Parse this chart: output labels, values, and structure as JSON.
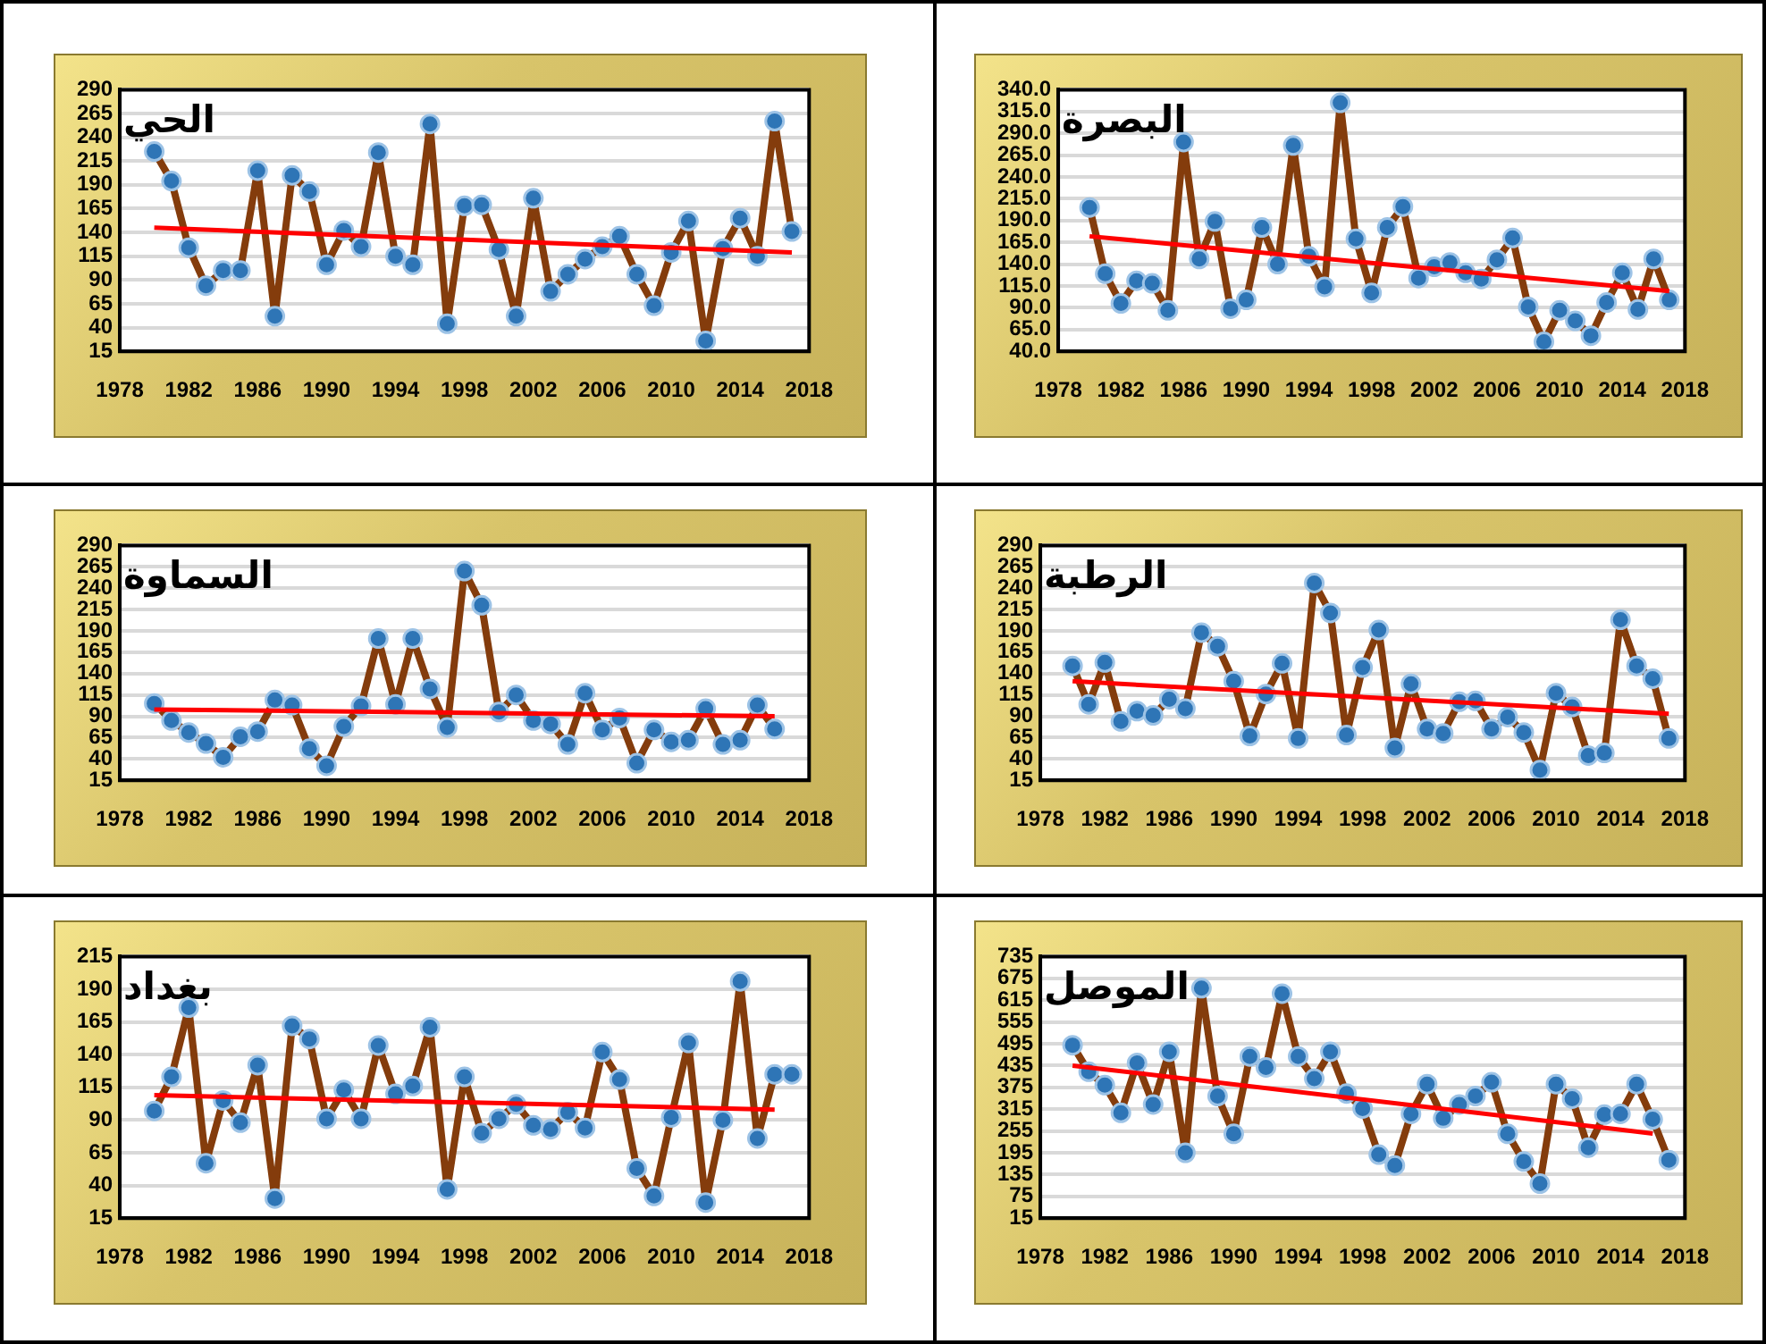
{
  "chart_data": [
    {
      "type": "line",
      "title": "الحي",
      "xlim": [
        1978,
        2018
      ],
      "xticks": [
        1978,
        1982,
        1986,
        1990,
        1994,
        1998,
        2002,
        2006,
        2010,
        2014,
        2018
      ],
      "ylim": [
        15,
        290
      ],
      "yticks": [
        15,
        40,
        65,
        90,
        115,
        140,
        165,
        190,
        215,
        240,
        265,
        290
      ],
      "grid": "y",
      "legend": false,
      "series": [
        {
          "color": "#843c0c",
          "marker": "circle",
          "x": [
            1980,
            1981,
            1982,
            1983,
            1984,
            1985,
            1986,
            1987,
            1988,
            1989,
            1990,
            1991,
            1992,
            1993,
            1994,
            1995,
            1996,
            1997,
            1998,
            1999,
            2000,
            2001,
            2002,
            2003,
            2004,
            2005,
            2006,
            2007,
            2008,
            2009,
            2010,
            2011,
            2012,
            2013,
            2014,
            2015,
            2016,
            2017
          ],
          "values": [
            225,
            194,
            124,
            84,
            100,
            100,
            205,
            52,
            200,
            183,
            106,
            142,
            125,
            224,
            115,
            106,
            254,
            44,
            168,
            169,
            122,
            52,
            176,
            78,
            96,
            112,
            125,
            136,
            96,
            63,
            119,
            152,
            26,
            123,
            155,
            115,
            257,
            141
          ]
        },
        {
          "type": "line",
          "color": "#ff0000",
          "marker": "none",
          "x": [
            1980,
            2017
          ],
          "values": [
            145,
            119
          ]
        }
      ]
    },
    {
      "type": "line",
      "title": "البصرة",
      "xlim": [
        1978,
        2018
      ],
      "xticks": [
        1978,
        1982,
        1986,
        1990,
        1994,
        1998,
        2002,
        2006,
        2010,
        2014,
        2018
      ],
      "ylim": [
        40,
        340
      ],
      "yticks": [
        {
          "value": 40,
          "label": "40.0"
        },
        {
          "value": 65,
          "label": "65.0"
        },
        {
          "value": 90,
          "label": "90.0"
        },
        {
          "value": 115,
          "label": "115.0"
        },
        {
          "value": 140,
          "label": "140.0"
        },
        {
          "value": 165,
          "label": "165.0"
        },
        {
          "value": 190,
          "label": "190.0"
        },
        {
          "value": 215,
          "label": "215.0"
        },
        {
          "value": 240,
          "label": "240.0"
        },
        {
          "value": 265,
          "label": "265.0"
        },
        {
          "value": 290,
          "label": "290.0"
        },
        {
          "value": 315,
          "label": "315.0"
        },
        {
          "value": 340,
          "label": "340.0"
        }
      ],
      "grid": "y",
      "legend": false,
      "series": [
        {
          "color": "#843c0c",
          "marker": "circle",
          "x": [
            1980,
            1981,
            1982,
            1983,
            1984,
            1985,
            1986,
            1987,
            1988,
            1989,
            1990,
            1991,
            1992,
            1993,
            1994,
            1995,
            1996,
            1997,
            1998,
            1999,
            2000,
            2001,
            2002,
            2003,
            2004,
            2005,
            2006,
            2007,
            2008,
            2009,
            2010,
            2011,
            2012,
            2013,
            2014,
            2015,
            2016,
            2017
          ],
          "values": [
            205,
            129,
            95,
            121,
            118,
            87,
            280,
            146,
            189,
            89,
            99,
            182,
            140,
            276,
            149,
            114,
            325,
            169,
            107,
            182,
            206,
            124,
            137,
            142,
            130,
            123,
            145,
            170,
            91,
            51,
            87,
            75,
            58,
            96,
            130,
            88,
            146,
            99
          ]
        },
        {
          "type": "line",
          "color": "#ff0000",
          "marker": "none",
          "x": [
            1980,
            2017
          ],
          "values": [
            172,
            109
          ]
        }
      ]
    },
    {
      "type": "line",
      "title": "السماوة",
      "xlim": [
        1978,
        2018
      ],
      "xticks": [
        1978,
        1982,
        1986,
        1990,
        1994,
        1998,
        2002,
        2006,
        2010,
        2014,
        2018
      ],
      "ylim": [
        15,
        290
      ],
      "yticks": [
        15,
        40,
        65,
        90,
        115,
        140,
        165,
        190,
        215,
        240,
        265,
        290
      ],
      "grid": "y",
      "legend": false,
      "series": [
        {
          "color": "#843c0c",
          "marker": "circle",
          "x": [
            1980,
            1981,
            1982,
            1983,
            1984,
            1985,
            1986,
            1987,
            1988,
            1989,
            1990,
            1991,
            1992,
            1993,
            1994,
            1995,
            1996,
            1997,
            1998,
            1999,
            2000,
            2001,
            2002,
            2003,
            2004,
            2005,
            2006,
            2007,
            2008,
            2009,
            2010,
            2011,
            2012,
            2013,
            2014,
            2015,
            2016
          ],
          "values": [
            105,
            85,
            71,
            58,
            42,
            66,
            72,
            109,
            103,
            52,
            32,
            78,
            102,
            181,
            104,
            181,
            122,
            77,
            260,
            220,
            95,
            115,
            85,
            81,
            57,
            117,
            74,
            88,
            35,
            74,
            60,
            62,
            99,
            57,
            62,
            103,
            75
          ]
        },
        {
          "type": "line",
          "color": "#ff0000",
          "marker": "none",
          "x": [
            1980,
            2016
          ],
          "values": [
            98,
            90
          ]
        }
      ]
    },
    {
      "type": "line",
      "title": "الرطبة",
      "xlim": [
        1978,
        2018
      ],
      "xticks": [
        1978,
        1982,
        1986,
        1990,
        1994,
        1998,
        2002,
        2006,
        2010,
        2014,
        2018
      ],
      "ylim": [
        15,
        290
      ],
      "yticks": [
        15,
        40,
        65,
        90,
        115,
        140,
        165,
        190,
        215,
        240,
        265,
        290
      ],
      "grid": "y",
      "legend": false,
      "series": [
        {
          "color": "#843c0c",
          "marker": "circle",
          "x": [
            1980,
            1981,
            1982,
            1983,
            1984,
            1985,
            1986,
            1987,
            1988,
            1989,
            1990,
            1991,
            1992,
            1993,
            1994,
            1995,
            1996,
            1997,
            1998,
            1999,
            2000,
            2001,
            2002,
            2003,
            2004,
            2005,
            2006,
            2007,
            2008,
            2009,
            2010,
            2011,
            2012,
            2013,
            2014,
            2015,
            2016,
            2017
          ],
          "values": [
            149,
            104,
            153,
            84,
            96,
            91,
            110,
            99,
            188,
            172,
            131,
            67,
            116,
            152,
            64,
            246,
            211,
            68,
            147,
            191,
            53,
            128,
            75,
            70,
            107,
            108,
            75,
            89,
            71,
            27,
            117,
            101,
            44,
            47,
            203,
            149,
            134,
            64
          ]
        },
        {
          "type": "line",
          "color": "#ff0000",
          "marker": "none",
          "x": [
            1980,
            2017
          ],
          "values": [
            131,
            93
          ]
        }
      ]
    },
    {
      "type": "line",
      "title": "بغداد",
      "xlim": [
        1978,
        2018
      ],
      "xticks": [
        1978,
        1982,
        1986,
        1990,
        1994,
        1998,
        2002,
        2006,
        2010,
        2014,
        2018
      ],
      "ylim": [
        15,
        215
      ],
      "yticks": [
        15,
        40,
        65,
        90,
        115,
        140,
        165,
        190,
        215
      ],
      "grid": "y",
      "legend": false,
      "series": [
        {
          "color": "#843c0c",
          "marker": "circle",
          "x": [
            1980,
            1981,
            1982,
            1983,
            1984,
            1985,
            1986,
            1987,
            1988,
            1989,
            1990,
            1991,
            1992,
            1993,
            1994,
            1995,
            1996,
            1997,
            1998,
            1999,
            2000,
            2001,
            2002,
            2003,
            2004,
            2005,
            2006,
            2007,
            2008,
            2009,
            2010,
            2011,
            2012,
            2013,
            2014,
            2015,
            2016,
            2017
          ],
          "values": [
            97,
            123,
            176,
            57,
            105,
            88,
            132,
            30,
            162,
            152,
            91,
            113,
            91,
            147,
            110,
            116,
            161,
            37,
            123,
            80,
            91,
            102,
            86,
            83,
            96,
            84,
            142,
            121,
            53,
            32,
            92,
            149,
            27,
            90,
            196,
            76,
            125,
            125
          ]
        },
        {
          "type": "line",
          "color": "#ff0000",
          "marker": "none",
          "x": [
            1980,
            2016
          ],
          "values": [
            109,
            98
          ]
        }
      ]
    },
    {
      "type": "line",
      "title": "الموصل",
      "xlim": [
        1978,
        2018
      ],
      "xticks": [
        1978,
        1982,
        1986,
        1990,
        1994,
        1998,
        2002,
        2006,
        2010,
        2014,
        2018
      ],
      "ylim": [
        15,
        735
      ],
      "yticks": [
        15,
        75,
        135,
        195,
        255,
        315,
        375,
        435,
        495,
        555,
        615,
        675,
        735
      ],
      "grid": "y",
      "legend": false,
      "series": [
        {
          "color": "#843c0c",
          "marker": "circle",
          "x": [
            1980,
            1981,
            1982,
            1983,
            1984,
            1985,
            1986,
            1987,
            1988,
            1989,
            1990,
            1991,
            1992,
            1993,
            1994,
            1995,
            1996,
            1997,
            1998,
            1999,
            2000,
            2001,
            2002,
            2003,
            2004,
            2005,
            2006,
            2007,
            2008,
            2009,
            2010,
            2011,
            2012,
            2013,
            2014,
            2015,
            2016,
            2017
          ],
          "values": [
            491,
            418,
            381,
            305,
            442,
            328,
            473,
            195,
            648,
            351,
            247,
            460,
            430,
            633,
            460,
            399,
            473,
            358,
            317,
            190,
            160,
            302,
            384,
            290,
            328,
            351,
            389,
            247,
            171,
            110,
            384,
            344,
            209,
            300,
            302,
            384,
            287,
            175
          ]
        },
        {
          "type": "line",
          "color": "#ff0000",
          "marker": "none",
          "x": [
            1980,
            2016
          ],
          "values": [
            435,
            248
          ]
        }
      ]
    }
  ]
}
